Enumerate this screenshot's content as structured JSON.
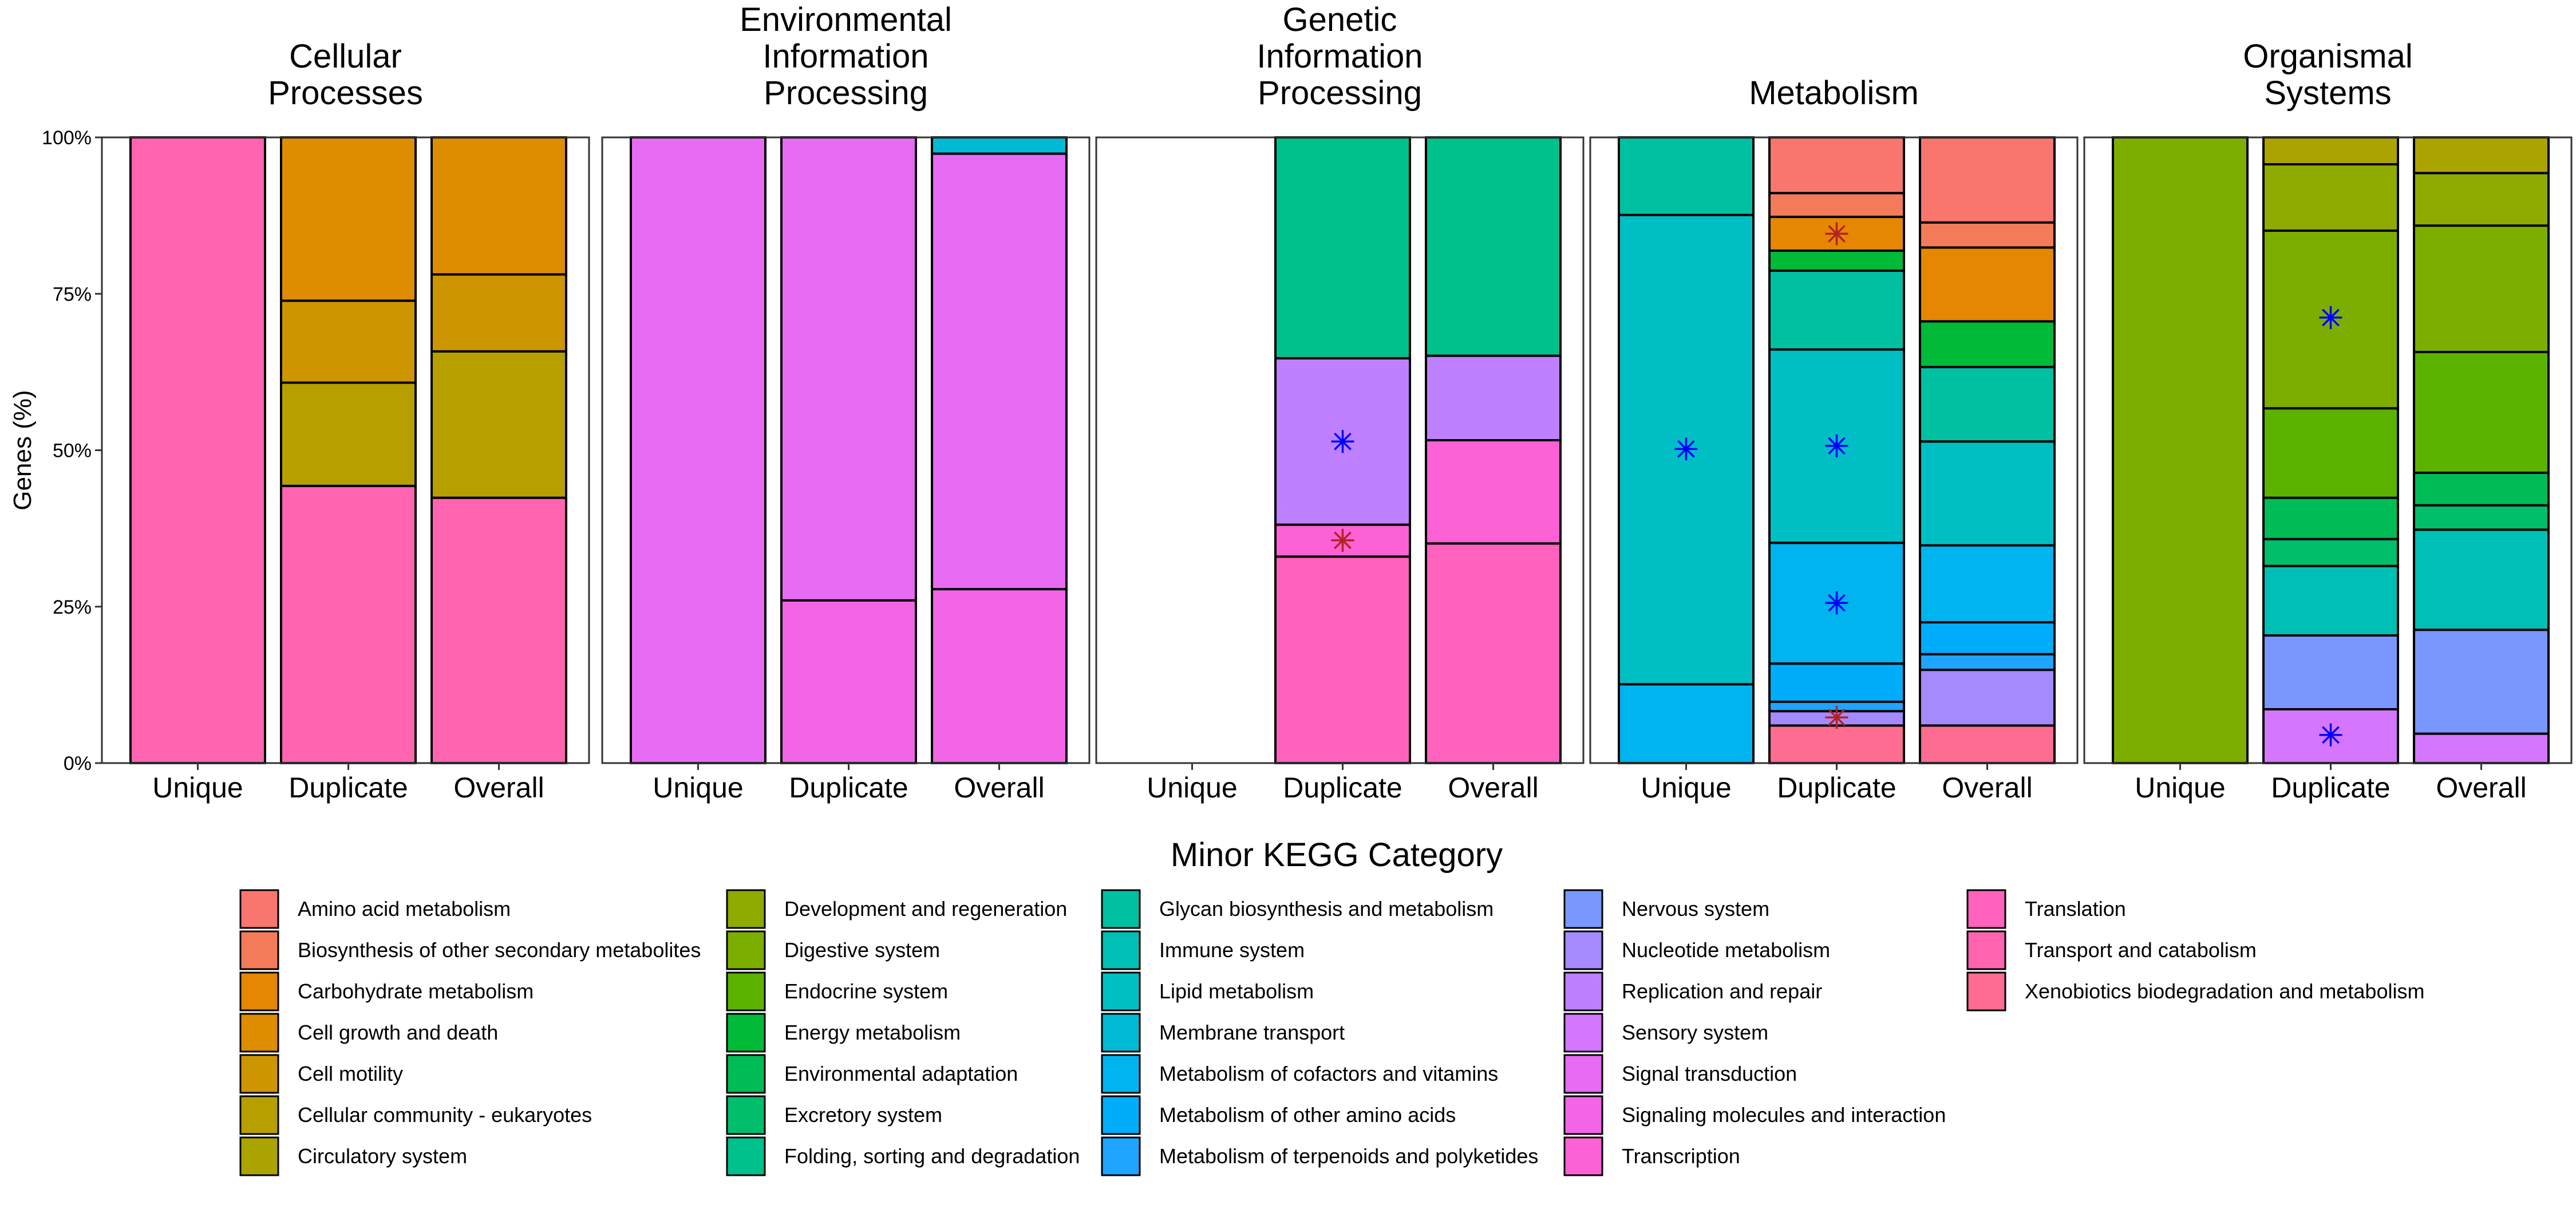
{
  "chart_data": {
    "type": "bar",
    "stacked": true,
    "ylabel": "Genes (%)",
    "ylim": [
      0,
      100
    ],
    "yticks": [
      "0%",
      "25%",
      "50%",
      "75%",
      "100%"
    ],
    "grid": false,
    "legend": {
      "title": "Minor KEGG Category",
      "placement": "bottom",
      "entries": [
        {
          "name": "Amino acid metabolism",
          "color": "#F8766D"
        },
        {
          "name": "Biosynthesis of other secondary metabolites",
          "color": "#F37B59"
        },
        {
          "name": "Carbohydrate metabolism",
          "color": "#E58700"
        },
        {
          "name": "Cell growth and death",
          "color": "#DE8C00"
        },
        {
          "name": "Cell motility",
          "color": "#CD9600"
        },
        {
          "name": "Cellular community - eukaryotes",
          "color": "#B79F00"
        },
        {
          "name": "Circulatory system",
          "color": "#ABA300"
        },
        {
          "name": "Development and regeneration",
          "color": "#8FAA00"
        },
        {
          "name": "Digestive system",
          "color": "#7CAE00"
        },
        {
          "name": "Endocrine system",
          "color": "#5BB300"
        },
        {
          "name": "Energy metabolism",
          "color": "#00BA38"
        },
        {
          "name": "Environmental adaptation",
          "color": "#00BC56"
        },
        {
          "name": "Excretory system",
          "color": "#00BE6C"
        },
        {
          "name": "Folding, sorting and degradation",
          "color": "#00C08B"
        },
        {
          "name": "Glycan biosynthesis and metabolism",
          "color": "#00C0A2"
        },
        {
          "name": "Immune system",
          "color": "#00BFB4"
        },
        {
          "name": "Lipid metabolism",
          "color": "#00BFC4"
        },
        {
          "name": "Membrane transport",
          "color": "#00BAD5"
        },
        {
          "name": "Metabolism of cofactors and vitamins",
          "color": "#00B4EF"
        },
        {
          "name": "Metabolism of other amino acids",
          "color": "#00ADFA"
        },
        {
          "name": "Metabolism of terpenoids and polyketides",
          "color": "#1FA4FF"
        },
        {
          "name": "Nervous system",
          "color": "#7997FF"
        },
        {
          "name": "Nucleotide metabolism",
          "color": "#A58AFF"
        },
        {
          "name": "Replication and repair",
          "color": "#BE80FF"
        },
        {
          "name": "Sensory system",
          "color": "#D576FF"
        },
        {
          "name": "Signal transduction",
          "color": "#E76BF3"
        },
        {
          "name": "Signaling molecules and interaction",
          "color": "#F265E7"
        },
        {
          "name": "Transcription",
          "color": "#FC61D5"
        },
        {
          "name": "Translation",
          "color": "#FF62BC"
        },
        {
          "name": "Transport and catabolism",
          "color": "#FF64B0"
        },
        {
          "name": "Xenobiotics biodegradation and metabolism",
          "color": "#FF6C91"
        }
      ]
    },
    "star_colors": {
      "blue": "#0000FF",
      "red": "#B22222"
    },
    "categories": [
      "Unique",
      "Duplicate",
      "Overall"
    ],
    "facets": [
      {
        "title": [
          "Cellular",
          "Processes"
        ],
        "bars": [
          {
            "x": "Unique",
            "segments": [
              {
                "category": "Transport and catabolism",
                "value": 100
              }
            ]
          },
          {
            "x": "Duplicate",
            "segments": [
              {
                "category": "Transport and catabolism",
                "value": 44.3
              },
              {
                "category": "Cellular community - eukaryotes",
                "value": 16.5
              },
              {
                "category": "Cell motility",
                "value": 13.1
              },
              {
                "category": "Cell growth and death",
                "value": 26.1
              }
            ]
          },
          {
            "x": "Overall",
            "segments": [
              {
                "category": "Transport and catabolism",
                "value": 42.4
              },
              {
                "category": "Cellular community - eukaryotes",
                "value": 23.4
              },
              {
                "category": "Cell motility",
                "value": 12.3
              },
              {
                "category": "Cell growth and death",
                "value": 21.9
              }
            ]
          }
        ],
        "stars": []
      },
      {
        "title": [
          "Environmental",
          "Information",
          "Processing"
        ],
        "bars": [
          {
            "x": "Unique",
            "segments": [
              {
                "category": "Signal transduction",
                "value": 100
              }
            ]
          },
          {
            "x": "Duplicate",
            "segments": [
              {
                "category": "Signaling molecules and interaction",
                "value": 26
              },
              {
                "category": "Signal transduction",
                "value": 74
              }
            ]
          },
          {
            "x": "Overall",
            "segments": [
              {
                "category": "Signaling molecules and interaction",
                "value": 27.8
              },
              {
                "category": "Signal transduction",
                "value": 69.6
              },
              {
                "category": "Membrane transport",
                "value": 2.6
              }
            ]
          }
        ],
        "stars": []
      },
      {
        "title": [
          "Genetic",
          "Information",
          "Processing"
        ],
        "bars": [
          {
            "x": "Unique",
            "segments": []
          },
          {
            "x": "Duplicate",
            "segments": [
              {
                "category": "Translation",
                "value": 33
              },
              {
                "category": "Transcription",
                "value": 5.1
              },
              {
                "category": "Replication and repair",
                "value": 26.6
              },
              {
                "category": "Folding, sorting and degradation",
                "value": 35.3
              }
            ]
          },
          {
            "x": "Overall",
            "segments": [
              {
                "category": "Translation",
                "value": 35.1
              },
              {
                "category": "Transcription",
                "value": 16.5
              },
              {
                "category": "Replication and repair",
                "value": 13.5
              },
              {
                "category": "Folding, sorting and degradation",
                "value": 34.9
              }
            ]
          }
        ],
        "stars": [
          {
            "x": "Duplicate",
            "y": 51.4,
            "color": "blue"
          },
          {
            "x": "Duplicate",
            "y": 35.6,
            "color": "red"
          }
        ]
      },
      {
        "title": [
          "Metabolism"
        ],
        "bars": [
          {
            "x": "Unique",
            "segments": [
              {
                "category": "Metabolism of cofactors and vitamins",
                "value": 12.6
              },
              {
                "category": "Lipid metabolism",
                "value": 75
              },
              {
                "category": "Glycan biosynthesis and metabolism",
                "value": 12.4
              }
            ]
          },
          {
            "x": "Duplicate",
            "segments": [
              {
                "category": "Xenobiotics biodegradation and metabolism",
                "value": 6
              },
              {
                "category": "Nucleotide metabolism",
                "value": 2.3
              },
              {
                "category": "Metabolism of terpenoids and polyketides",
                "value": 1.5
              },
              {
                "category": "Metabolism of other amino acids",
                "value": 6.1
              },
              {
                "category": "Metabolism of cofactors and vitamins",
                "value": 19.3
              },
              {
                "category": "Lipid metabolism",
                "value": 30.9
              },
              {
                "category": "Glycan biosynthesis and metabolism",
                "value": 12.6
              },
              {
                "category": "Energy metabolism",
                "value": 3.2
              },
              {
                "category": "Carbohydrate metabolism",
                "value": 5.4
              },
              {
                "category": "Biosynthesis of other secondary metabolites",
                "value": 3.8
              },
              {
                "category": "Amino acid metabolism",
                "value": 8.9
              }
            ]
          },
          {
            "x": "Overall",
            "segments": [
              {
                "category": "Xenobiotics biodegradation and metabolism",
                "value": 6
              },
              {
                "category": "Nucleotide metabolism",
                "value": 8.9
              },
              {
                "category": "Metabolism of terpenoids and polyketides",
                "value": 2.5
              },
              {
                "category": "Metabolism of other amino acids",
                "value": 5.1
              },
              {
                "category": "Metabolism of cofactors and vitamins",
                "value": 12.3
              },
              {
                "category": "Lipid metabolism",
                "value": 16.6
              },
              {
                "category": "Glycan biosynthesis and metabolism",
                "value": 11.9
              },
              {
                "category": "Energy metabolism",
                "value": 7.3
              },
              {
                "category": "Carbohydrate metabolism",
                "value": 11.8
              },
              {
                "category": "Biosynthesis of other secondary metabolites",
                "value": 4
              },
              {
                "category": "Amino acid metabolism",
                "value": 13.6
              }
            ]
          }
        ],
        "stars": [
          {
            "x": "Unique",
            "y": 50.2,
            "color": "blue"
          },
          {
            "x": "Duplicate",
            "y": 84.6,
            "color": "red"
          },
          {
            "x": "Duplicate",
            "y": 50.7,
            "color": "blue"
          },
          {
            "x": "Duplicate",
            "y": 25.6,
            "color": "blue"
          },
          {
            "x": "Duplicate",
            "y": 7.3,
            "color": "red"
          }
        ]
      },
      {
        "title": [
          "Organismal",
          "Systems"
        ],
        "bars": [
          {
            "x": "Unique",
            "segments": [
              {
                "category": "Digestive system",
                "value": 100
              }
            ]
          },
          {
            "x": "Duplicate",
            "segments": [
              {
                "category": "Sensory system",
                "value": 8.6
              },
              {
                "category": "Nervous system",
                "value": 11.8
              },
              {
                "category": "Immune system",
                "value": 11.1
              },
              {
                "category": "Excretory system",
                "value": 4.3
              },
              {
                "category": "Environmental adaptation",
                "value": 6.6
              },
              {
                "category": "Endocrine system",
                "value": 14.3
              },
              {
                "category": "Digestive system",
                "value": 28.4
              },
              {
                "category": "Development and regeneration",
                "value": 10.6
              },
              {
                "category": "Circulatory system",
                "value": 4.3
              }
            ]
          },
          {
            "x": "Overall",
            "segments": [
              {
                "category": "Sensory system",
                "value": 4.7
              },
              {
                "category": "Nervous system",
                "value": 16.6
              },
              {
                "category": "Immune system",
                "value": 16
              },
              {
                "category": "Excretory system",
                "value": 3.9
              },
              {
                "category": "Environmental adaptation",
                "value": 5.2
              },
              {
                "category": "Endocrine system",
                "value": 19.3
              },
              {
                "category": "Digestive system",
                "value": 20.2
              },
              {
                "category": "Development and regeneration",
                "value": 8.4
              },
              {
                "category": "Circulatory system",
                "value": 5.7
              }
            ]
          }
        ],
        "stars": [
          {
            "x": "Duplicate",
            "y": 71.2,
            "color": "blue"
          },
          {
            "x": "Duplicate",
            "y": 4.5,
            "color": "blue"
          }
        ]
      }
    ]
  }
}
